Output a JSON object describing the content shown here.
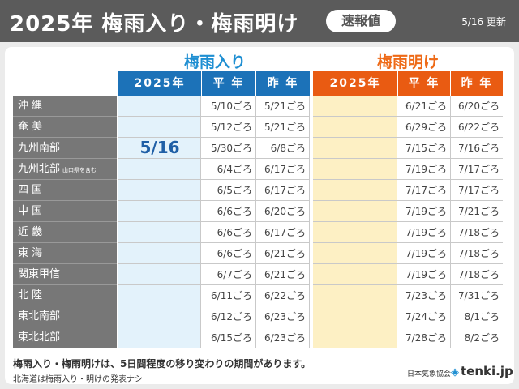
{
  "header": {
    "title": "2025年 梅雨入り・梅雨明け",
    "badge": "速報値",
    "updated": "5/16 更新"
  },
  "sections": {
    "tsuyu_iri": "梅雨入り",
    "tsuyu_ake": "梅雨明け"
  },
  "columns": {
    "year": "2025年",
    "normal": "平 年",
    "last_year": "昨 年"
  },
  "rows": [
    {
      "region": "沖 縄",
      "note": "",
      "iri2025": "",
      "iri_normal": "5/10ごろ",
      "iri_last": "5/21ごろ",
      "ake2025": "",
      "ake_normal": "6/21ごろ",
      "ake_last": "6/20ごろ"
    },
    {
      "region": "奄 美",
      "note": "",
      "iri2025": "",
      "iri_normal": "5/12ごろ",
      "iri_last": "5/21ごろ",
      "ake2025": "",
      "ake_normal": "6/29ごろ",
      "ake_last": "6/22ごろ"
    },
    {
      "region": "九州南部",
      "note": "",
      "iri2025": "5/16",
      "iri_normal": "5/30ごろ",
      "iri_last": "6/8ごろ",
      "ake2025": "",
      "ake_normal": "7/15ごろ",
      "ake_last": "7/16ごろ"
    },
    {
      "region": "九州北部",
      "note": "山口県を含む",
      "iri2025": "",
      "iri_normal": "6/4ごろ",
      "iri_last": "6/17ごろ",
      "ake2025": "",
      "ake_normal": "7/19ごろ",
      "ake_last": "7/17ごろ"
    },
    {
      "region": "四 国",
      "note": "",
      "iri2025": "",
      "iri_normal": "6/5ごろ",
      "iri_last": "6/17ごろ",
      "ake2025": "",
      "ake_normal": "7/17ごろ",
      "ake_last": "7/17ごろ"
    },
    {
      "region": "中 国",
      "note": "",
      "iri2025": "",
      "iri_normal": "6/6ごろ",
      "iri_last": "6/20ごろ",
      "ake2025": "",
      "ake_normal": "7/19ごろ",
      "ake_last": "7/21ごろ"
    },
    {
      "region": "近 畿",
      "note": "",
      "iri2025": "",
      "iri_normal": "6/6ごろ",
      "iri_last": "6/17ごろ",
      "ake2025": "",
      "ake_normal": "7/19ごろ",
      "ake_last": "7/18ごろ"
    },
    {
      "region": "東 海",
      "note": "",
      "iri2025": "",
      "iri_normal": "6/6ごろ",
      "iri_last": "6/21ごろ",
      "ake2025": "",
      "ake_normal": "7/19ごろ",
      "ake_last": "7/18ごろ"
    },
    {
      "region": "関東甲信",
      "note": "",
      "iri2025": "",
      "iri_normal": "6/7ごろ",
      "iri_last": "6/21ごろ",
      "ake2025": "",
      "ake_normal": "7/19ごろ",
      "ake_last": "7/18ごろ"
    },
    {
      "region": "北 陸",
      "note": "",
      "iri2025": "",
      "iri_normal": "6/11ごろ",
      "iri_last": "6/22ごろ",
      "ake2025": "",
      "ake_normal": "7/23ごろ",
      "ake_last": "7/31ごろ"
    },
    {
      "region": "東北南部",
      "note": "",
      "iri2025": "",
      "iri_normal": "6/12ごろ",
      "iri_last": "6/23ごろ",
      "ake2025": "",
      "ake_normal": "7/24ごろ",
      "ake_last": "8/1ごろ"
    },
    {
      "region": "東北北部",
      "note": "",
      "iri2025": "",
      "iri_normal": "6/15ごろ",
      "iri_last": "6/23ごろ",
      "ake2025": "",
      "ake_normal": "7/28ごろ",
      "ake_last": "8/2ごろ"
    }
  ],
  "footer": {
    "note1": "梅雨入り・梅雨明けは、5日間程度の移り変わりの期間があります。",
    "note2": "北海道は梅雨入り・明けの発表ナシ",
    "org": "日本気象協会",
    "logo": "tenki.jp"
  },
  "colors": {
    "iri_accent": "#1c72b8",
    "ake_accent": "#e95b12",
    "iri_fill": "#e3f2fb",
    "ake_fill": "#fdf0c4"
  }
}
